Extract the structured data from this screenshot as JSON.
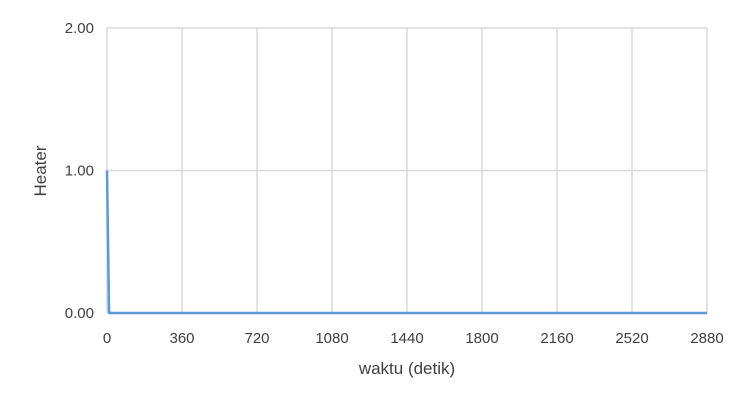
{
  "chart_data": {
    "type": "line",
    "xlabel": "waktu  (detik)",
    "ylabel": "Heater",
    "xlim": [
      0,
      2880
    ],
    "ylim": [
      0,
      2
    ],
    "x_ticks": [
      0,
      360,
      720,
      1080,
      1440,
      1800,
      2160,
      2520,
      2880
    ],
    "x_tick_labels": [
      "0",
      "360",
      "720",
      "1080",
      "1440",
      "1800",
      "2160",
      "2520",
      "2880"
    ],
    "y_ticks": [
      0,
      1,
      2
    ],
    "y_tick_labels": [
      "0.00",
      "1.00",
      "2.00"
    ],
    "grid": true,
    "legend": "none",
    "series": [
      {
        "color": "#5b9bd5",
        "x": [
          0,
          10,
          2880
        ],
        "y": [
          1,
          0,
          0
        ]
      }
    ]
  },
  "colors": {
    "grid": "#d9d9d9",
    "text": "#404040",
    "line": "#5b9bd5"
  }
}
